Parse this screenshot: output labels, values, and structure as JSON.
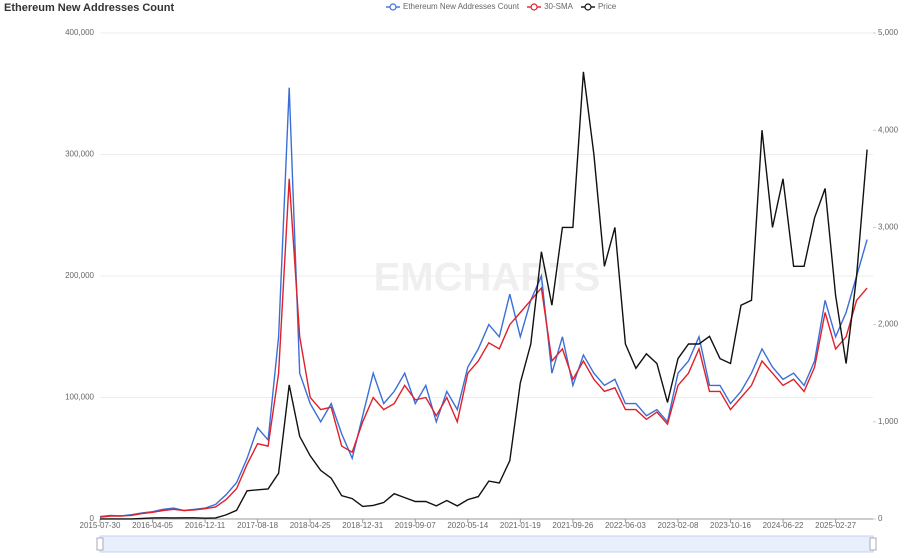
{
  "chart_data": {
    "type": "line",
    "title": "Ethereum New Addresses Count",
    "watermark": "EMCHARTS",
    "x": [
      "2015-07-30",
      "2015-09-18",
      "2015-11-07",
      "2015-12-27",
      "2016-02-15",
      "2016-04-05",
      "2016-05-25",
      "2016-07-14",
      "2016-09-02",
      "2016-10-22",
      "2016-12-11",
      "2017-01-30",
      "2017-03-21",
      "2017-05-10",
      "2017-06-29",
      "2017-08-18",
      "2017-10-07",
      "2017-11-26",
      "2018-01-15",
      "2018-03-06",
      "2018-04-25",
      "2018-06-14",
      "2018-08-03",
      "2018-09-22",
      "2018-11-11",
      "2018-12-31",
      "2019-02-19",
      "2019-04-10",
      "2019-05-30",
      "2019-07-19",
      "2019-09-07",
      "2019-10-27",
      "2019-12-16",
      "2020-02-04",
      "2020-03-25",
      "2020-05-14",
      "2020-07-03",
      "2020-08-22",
      "2020-10-11",
      "2020-11-30",
      "2021-01-19",
      "2021-03-10",
      "2021-04-29",
      "2021-06-18",
      "2021-08-07",
      "2021-09-26",
      "2021-11-15",
      "2022-01-04",
      "2022-02-23",
      "2022-04-14",
      "2022-06-03",
      "2022-07-23",
      "2022-09-11",
      "2022-10-31",
      "2022-12-20",
      "2023-02-08",
      "2023-03-30",
      "2023-05-19",
      "2023-07-08",
      "2023-08-27",
      "2023-10-16",
      "2023-12-05",
      "2024-01-24",
      "2024-03-14",
      "2024-05-03",
      "2024-06-22",
      "2024-08-11",
      "2024-09-30",
      "2024-11-19",
      "2025-01-08",
      "2025-02-27",
      "2025-04-18",
      "2025-06-07",
      "2025-07-27"
    ],
    "xlim": [
      "2015-07-30",
      "2025-08-24"
    ],
    "xticks": [
      "2015-07-30",
      "2016-04-05",
      "2016-12-11",
      "2017-08-18",
      "2018-04-25",
      "2018-12-31",
      "2019-09-07",
      "2020-05-14",
      "2021-01-19",
      "2021-09-26",
      "2022-06-03",
      "2023-02-08",
      "2023-10-16",
      "2024-06-22",
      "2025-02-27"
    ],
    "ylim": [
      0,
      400000
    ],
    "yticks": [
      0,
      {
        "value": 100000,
        "label": "100,000"
      },
      {
        "value": 200000,
        "label": "200,000"
      },
      {
        "value": 300000,
        "label": "300,000"
      },
      {
        "value": 400000,
        "label": "400,000"
      }
    ],
    "y2lim": [
      0,
      5000
    ],
    "y2ticks": [
      0,
      {
        "value": 1000,
        "label": "1,000"
      },
      {
        "value": 2000,
        "label": "2,000"
      },
      {
        "value": 3000,
        "label": "3,000"
      },
      {
        "value": 4000,
        "label": "4,000"
      },
      {
        "value": 5000,
        "label": "5,000"
      }
    ],
    "grid": true,
    "legend": "top",
    "series": [
      {
        "name": "Ethereum New Addresses Count",
        "color": "#3b6fd8",
        "values": [
          2000,
          3000,
          2500,
          3500,
          5000,
          6000,
          8000,
          9000,
          7000,
          8000,
          9000,
          12000,
          20000,
          30000,
          50000,
          75000,
          65000,
          150000,
          355000,
          120000,
          95000,
          80000,
          95000,
          70000,
          50000,
          85000,
          120000,
          95000,
          105000,
          120000,
          95000,
          110000,
          80000,
          105000,
          90000,
          125000,
          140000,
          160000,
          150000,
          185000,
          150000,
          180000,
          200000,
          120000,
          150000,
          110000,
          135000,
          120000,
          110000,
          115000,
          95000,
          95000,
          85000,
          90000,
          80000,
          120000,
          130000,
          150000,
          110000,
          110000,
          95000,
          105000,
          120000,
          140000,
          125000,
          115000,
          120000,
          110000,
          130000,
          180000,
          150000,
          170000,
          200000,
          230000
        ]
      },
      {
        "name": "30-SMA",
        "color": "#e0202a",
        "values": [
          1500,
          2500,
          2500,
          3000,
          4500,
          5500,
          7000,
          8000,
          7000,
          7500,
          8500,
          10000,
          16000,
          25000,
          45000,
          62000,
          60000,
          120000,
          280000,
          150000,
          100000,
          90000,
          92000,
          60000,
          55000,
          80000,
          100000,
          90000,
          95000,
          110000,
          98000,
          100000,
          85000,
          100000,
          80000,
          120000,
          130000,
          145000,
          140000,
          160000,
          170000,
          180000,
          190000,
          130000,
          140000,
          115000,
          130000,
          115000,
          105000,
          108000,
          90000,
          90000,
          82000,
          88000,
          78000,
          110000,
          120000,
          140000,
          105000,
          105000,
          90000,
          100000,
          110000,
          130000,
          120000,
          110000,
          115000,
          105000,
          125000,
          170000,
          140000,
          150000,
          180000,
          190000
        ]
      },
      {
        "name": "Price",
        "color": "#111111",
        "axis": "y2",
        "values": [
          1,
          1,
          1,
          1,
          5,
          11,
          12,
          11,
          12,
          12,
          8,
          11,
          42,
          90,
          290,
          300,
          310,
          470,
          1380,
          850,
          650,
          500,
          420,
          240,
          210,
          130,
          140,
          170,
          260,
          220,
          180,
          180,
          135,
          190,
          135,
          200,
          230,
          390,
          370,
          600,
          1400,
          1800,
          2750,
          2200,
          3000,
          3000,
          4600,
          3750,
          2600,
          3000,
          1800,
          1550,
          1700,
          1600,
          1200,
          1650,
          1800,
          1800,
          1880,
          1650,
          1600,
          2200,
          2250,
          4000,
          3000,
          3500,
          2600,
          2600,
          3100,
          3400,
          2300,
          1600,
          2500,
          3800
        ]
      }
    ]
  }
}
